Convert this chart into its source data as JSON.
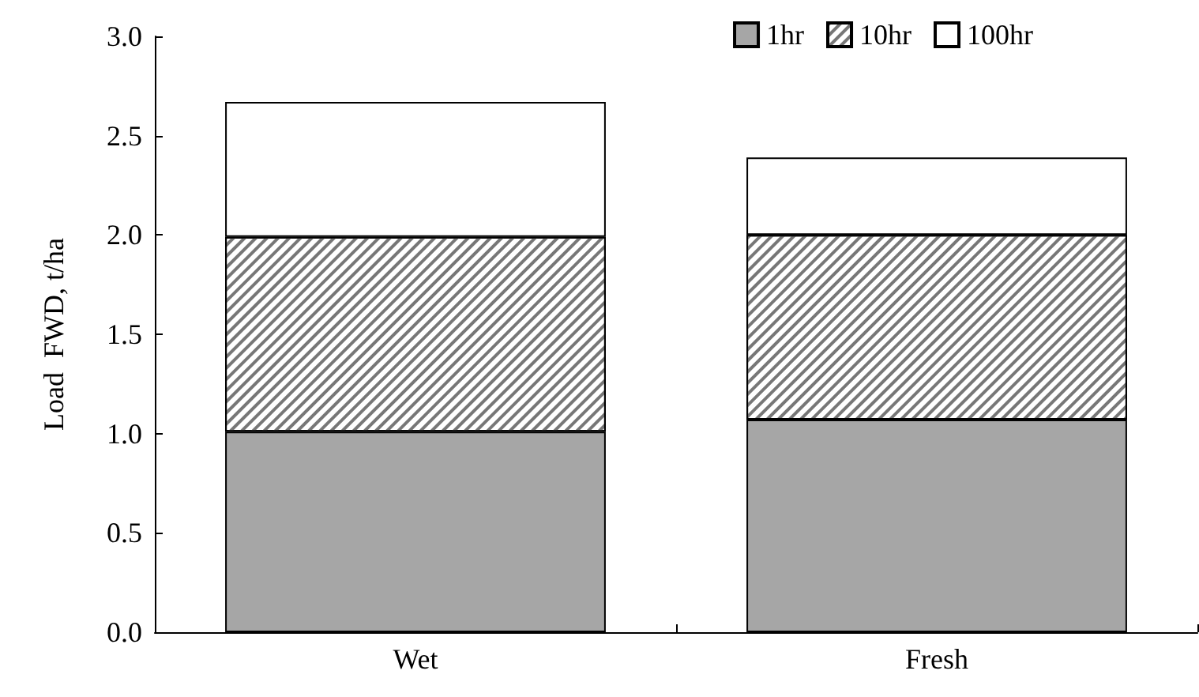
{
  "chart_data": {
    "type": "bar",
    "stacked": true,
    "ylabel": "Load  FWD, t/ha",
    "categories": [
      "Wet",
      "Fresh"
    ],
    "series": [
      {
        "name": "1hr",
        "color": "#a6a6a6",
        "values": [
          1.01,
          1.07
        ]
      },
      {
        "name": "10hr",
        "color": "#ffffff",
        "values": [
          0.98,
          0.93
        ]
      },
      {
        "name": "100hr",
        "color": "#ffffff",
        "values": [
          0.68,
          0.39
        ]
      }
    ],
    "ylim": [
      0,
      3
    ],
    "yticks": [
      {
        "value": 0,
        "label": "0.0"
      },
      {
        "value": 0.5,
        "label": "0.5"
      },
      {
        "value": 1,
        "label": "1.0"
      },
      {
        "value": 1.5,
        "label": "1.5"
      },
      {
        "value": 2,
        "label": "2.0"
      },
      {
        "value": 2.5,
        "label": "2.5"
      },
      {
        "value": 3,
        "label": "3.0"
      }
    ],
    "grid": false,
    "legend": "top right"
  }
}
